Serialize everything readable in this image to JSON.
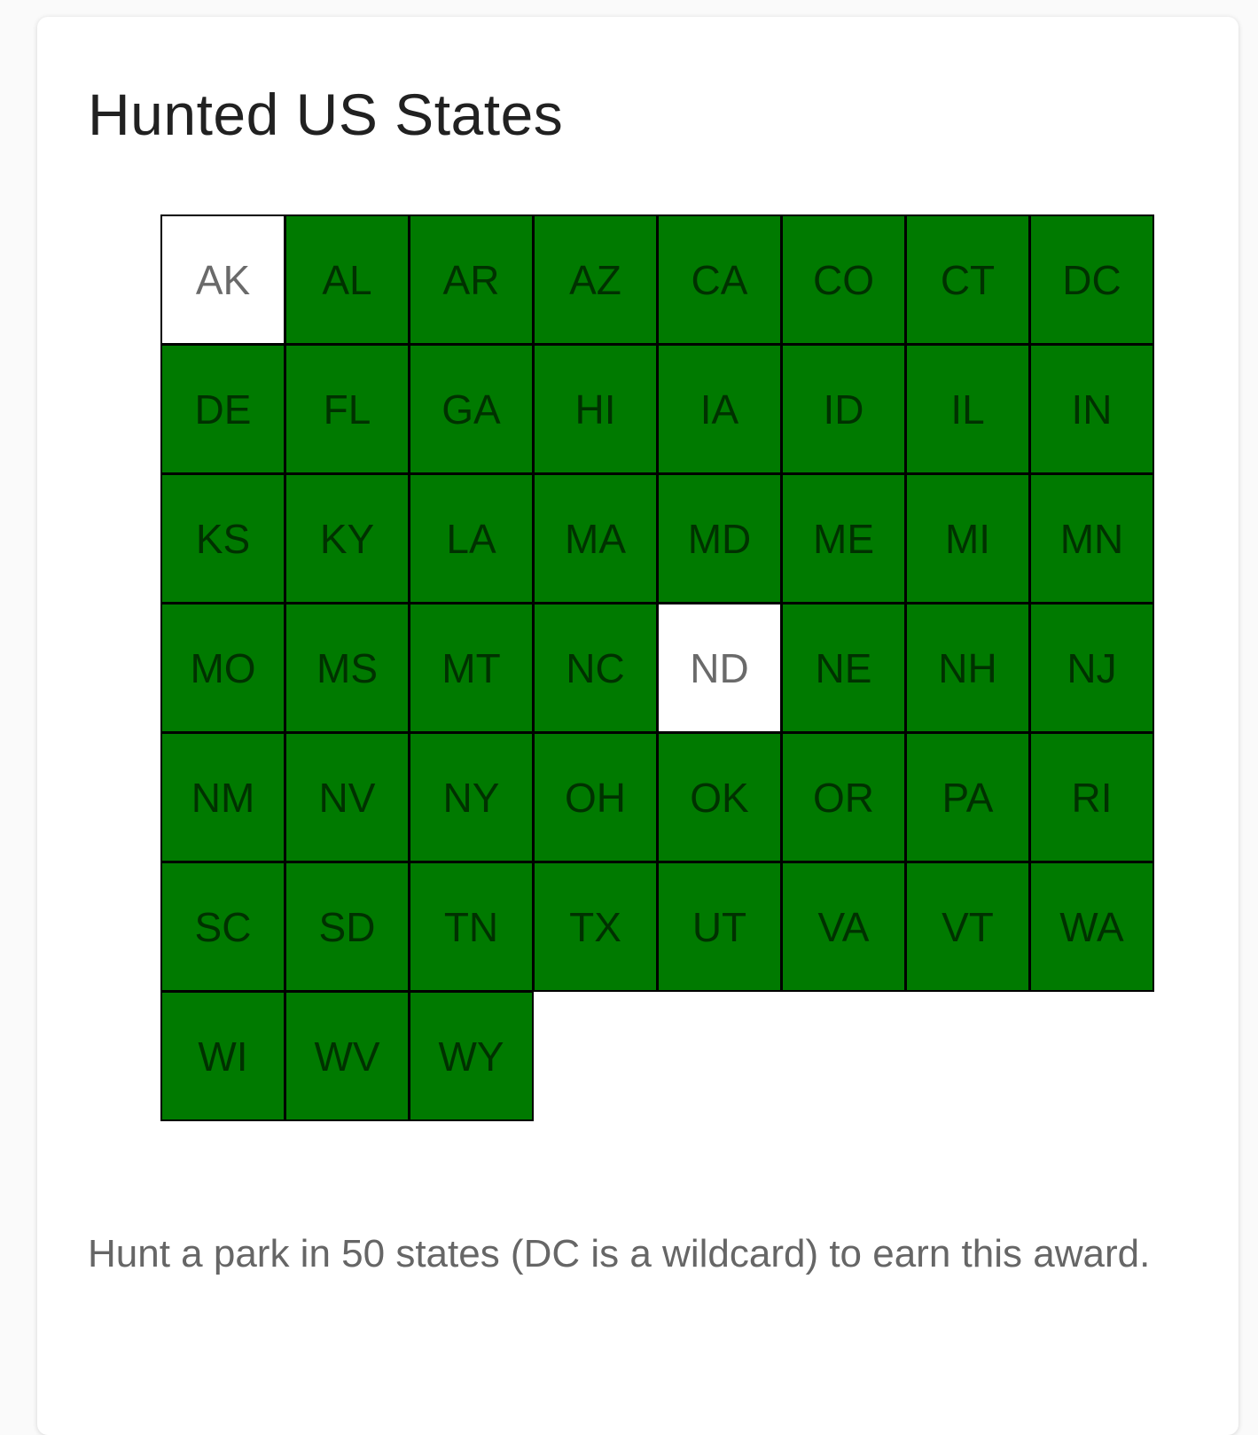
{
  "title": "Hunted US States",
  "colors": {
    "hunted": "#007a00",
    "not_hunted": "#ffffff"
  },
  "states": [
    {
      "code": "AK",
      "hunted": false
    },
    {
      "code": "AL",
      "hunted": true
    },
    {
      "code": "AR",
      "hunted": true
    },
    {
      "code": "AZ",
      "hunted": true
    },
    {
      "code": "CA",
      "hunted": true
    },
    {
      "code": "CO",
      "hunted": true
    },
    {
      "code": "CT",
      "hunted": true
    },
    {
      "code": "DC",
      "hunted": true
    },
    {
      "code": "DE",
      "hunted": true
    },
    {
      "code": "FL",
      "hunted": true
    },
    {
      "code": "GA",
      "hunted": true
    },
    {
      "code": "HI",
      "hunted": true
    },
    {
      "code": "IA",
      "hunted": true
    },
    {
      "code": "ID",
      "hunted": true
    },
    {
      "code": "IL",
      "hunted": true
    },
    {
      "code": "IN",
      "hunted": true
    },
    {
      "code": "KS",
      "hunted": true
    },
    {
      "code": "KY",
      "hunted": true
    },
    {
      "code": "LA",
      "hunted": true
    },
    {
      "code": "MA",
      "hunted": true
    },
    {
      "code": "MD",
      "hunted": true
    },
    {
      "code": "ME",
      "hunted": true
    },
    {
      "code": "MI",
      "hunted": true
    },
    {
      "code": "MN",
      "hunted": true
    },
    {
      "code": "MO",
      "hunted": true
    },
    {
      "code": "MS",
      "hunted": true
    },
    {
      "code": "MT",
      "hunted": true
    },
    {
      "code": "NC",
      "hunted": true
    },
    {
      "code": "ND",
      "hunted": false
    },
    {
      "code": "NE",
      "hunted": true
    },
    {
      "code": "NH",
      "hunted": true
    },
    {
      "code": "NJ",
      "hunted": true
    },
    {
      "code": "NM",
      "hunted": true
    },
    {
      "code": "NV",
      "hunted": true
    },
    {
      "code": "NY",
      "hunted": true
    },
    {
      "code": "OH",
      "hunted": true
    },
    {
      "code": "OK",
      "hunted": true
    },
    {
      "code": "OR",
      "hunted": true
    },
    {
      "code": "PA",
      "hunted": true
    },
    {
      "code": "RI",
      "hunted": true
    },
    {
      "code": "SC",
      "hunted": true
    },
    {
      "code": "SD",
      "hunted": true
    },
    {
      "code": "TN",
      "hunted": true
    },
    {
      "code": "TX",
      "hunted": true
    },
    {
      "code": "UT",
      "hunted": true
    },
    {
      "code": "VA",
      "hunted": true
    },
    {
      "code": "VT",
      "hunted": true
    },
    {
      "code": "WA",
      "hunted": true
    },
    {
      "code": "WI",
      "hunted": true
    },
    {
      "code": "WV",
      "hunted": true
    },
    {
      "code": "WY",
      "hunted": true
    }
  ],
  "description": "Hunt a park in 50 states (DC is a wildcard) to earn this award."
}
